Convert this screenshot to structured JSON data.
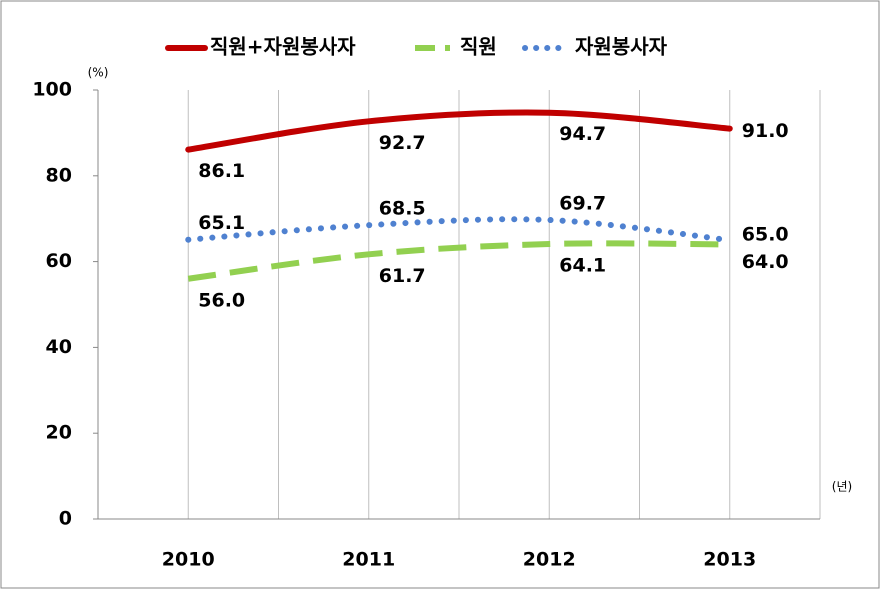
{
  "chart_data": {
    "type": "line",
    "categories": [
      "2010",
      "2011",
      "2012",
      "2013"
    ],
    "series": [
      {
        "name": "직원+자원봉사자",
        "color": "#c00000",
        "style": "solid",
        "values": [
          86.1,
          92.7,
          94.7,
          91.0
        ],
        "value_labels": [
          "86.1",
          "92.7",
          "94.7",
          "91.0"
        ]
      },
      {
        "name": "직원",
        "color": "#92d050",
        "style": "dashed",
        "values": [
          56.0,
          61.7,
          64.1,
          64.0
        ],
        "value_labels": [
          "56.0",
          "61.7",
          "64.1",
          "64.0"
        ]
      },
      {
        "name": "자원봉사자",
        "color": "#4f81d0",
        "style": "dotted",
        "values": [
          65.1,
          68.5,
          69.7,
          65.0
        ],
        "value_labels": [
          "65.1",
          "68.5",
          "69.7",
          "65.0"
        ]
      }
    ],
    "ylim": [
      0,
      100
    ],
    "yticks": [
      0,
      20,
      40,
      60,
      80,
      100
    ],
    "y_unit": "(%)",
    "x_unit": "(년)",
    "grid": true,
    "legend": "top"
  }
}
